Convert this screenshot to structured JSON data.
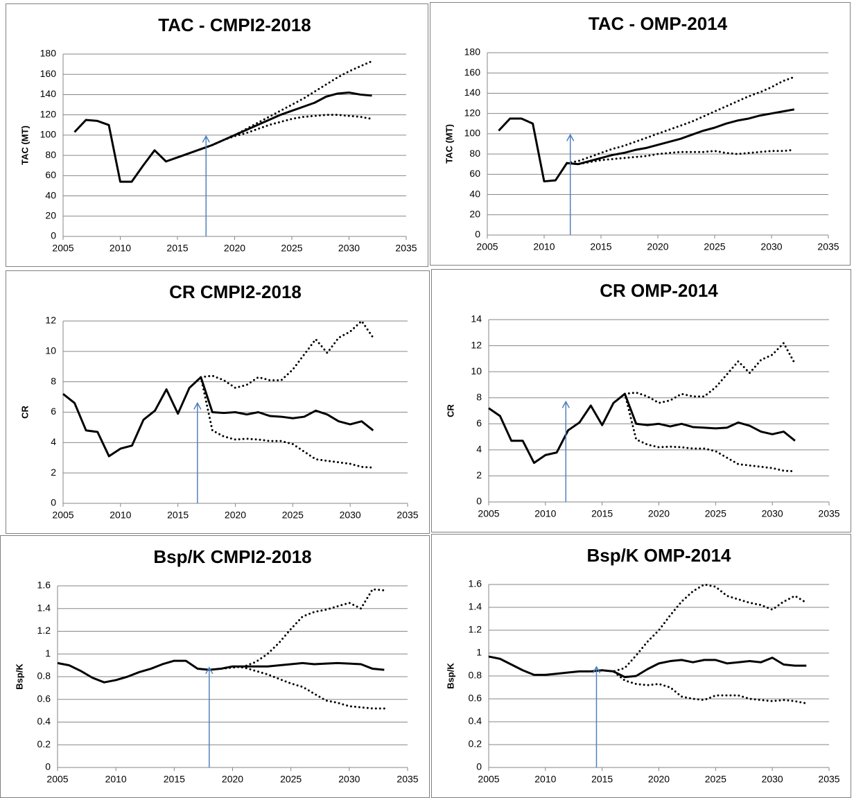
{
  "chart_data": [
    {
      "type": "line",
      "title": "TAC - CMPI2-2018",
      "ylabel": "TAC (MT)",
      "x": [
        2006,
        2007,
        2008,
        2009,
        2010,
        2011,
        2012,
        2013,
        2014,
        2015,
        2016,
        2017,
        2018,
        2019,
        2020,
        2021,
        2022,
        2023,
        2024,
        2025,
        2026,
        2027,
        2028,
        2029,
        2030,
        2031,
        2032
      ],
      "series": [
        {
          "color": "#000000",
          "dash": "solid",
          "values": [
            103,
            115,
            114,
            110,
            54,
            54,
            70,
            85,
            74,
            78,
            82,
            86,
            90,
            95,
            100,
            105,
            110,
            115,
            120,
            124,
            128,
            132,
            138,
            141,
            142,
            140,
            139
          ]
        },
        {
          "color": "#000000",
          "dash": "dotted",
          "values": [
            null,
            null,
            null,
            null,
            null,
            null,
            null,
            null,
            null,
            null,
            null,
            86,
            90,
            95,
            100,
            106,
            112,
            118,
            124,
            130,
            136,
            143,
            150,
            157,
            163,
            168,
            173
          ]
        },
        {
          "color": "#000000",
          "dash": "dotted",
          "values": [
            null,
            null,
            null,
            null,
            null,
            null,
            null,
            null,
            null,
            null,
            null,
            86,
            90,
            95,
            99,
            102,
            106,
            110,
            113,
            116,
            118,
            119,
            120,
            120,
            119,
            118,
            116
          ]
        }
      ],
      "arrow_x": 2017.5,
      "arrow_color": "#4f81bd",
      "xlim": [
        2005,
        2035
      ],
      "xticks": [
        2005,
        2010,
        2015,
        2020,
        2025,
        2030,
        2035
      ],
      "ylim": [
        0,
        180
      ],
      "yticks": [
        0,
        20,
        40,
        60,
        80,
        100,
        120,
        140,
        160,
        180
      ],
      "grid": true
    },
    {
      "type": "line",
      "title": "TAC - OMP-2014",
      "ylabel": "TAC (MT)",
      "x": [
        2006,
        2007,
        2008,
        2009,
        2010,
        2011,
        2012,
        2013,
        2014,
        2015,
        2016,
        2017,
        2018,
        2019,
        2020,
        2021,
        2022,
        2023,
        2024,
        2025,
        2026,
        2027,
        2028,
        2029,
        2030,
        2031,
        2032
      ],
      "series": [
        {
          "color": "#000000",
          "dash": "solid",
          "values": [
            103,
            115,
            115,
            110,
            53,
            54,
            71,
            70,
            73,
            76,
            79,
            81,
            84,
            86,
            89,
            92,
            95,
            99,
            103,
            106,
            110,
            113,
            115,
            118,
            120,
            122,
            124
          ]
        },
        {
          "color": "#000000",
          "dash": "dotted",
          "values": [
            null,
            null,
            null,
            null,
            null,
            null,
            71,
            73,
            77,
            81,
            85,
            88,
            92,
            96,
            100,
            104,
            108,
            112,
            117,
            122,
            127,
            132,
            137,
            141,
            146,
            152,
            156
          ]
        },
        {
          "color": "#000000",
          "dash": "dotted",
          "values": [
            null,
            null,
            null,
            null,
            null,
            null,
            71,
            70,
            72,
            74,
            75,
            76,
            77,
            78,
            80,
            81,
            82,
            82,
            82,
            83,
            81,
            80,
            81,
            82,
            83,
            83,
            84
          ]
        }
      ],
      "arrow_x": 2012.3,
      "arrow_color": "#4f81bd",
      "xlim": [
        2005,
        2035
      ],
      "xticks": [
        2005,
        2010,
        2015,
        2020,
        2025,
        2030,
        2035
      ],
      "ylim": [
        0,
        180
      ],
      "yticks": [
        0,
        20,
        40,
        60,
        80,
        100,
        120,
        140,
        160,
        180
      ],
      "grid": true
    },
    {
      "type": "line",
      "title": "CR CMPI2-2018",
      "ylabel": "CR",
      "x": [
        2005,
        2006,
        2007,
        2008,
        2009,
        2010,
        2011,
        2012,
        2013,
        2014,
        2015,
        2016,
        2017,
        2018,
        2019,
        2020,
        2021,
        2022,
        2023,
        2024,
        2025,
        2026,
        2027,
        2028,
        2029,
        2030,
        2031,
        2032
      ],
      "series": [
        {
          "color": "#000000",
          "dash": "solid",
          "values": [
            7.2,
            6.6,
            4.8,
            4.7,
            3.1,
            3.6,
            3.8,
            5.5,
            6.1,
            7.5,
            5.9,
            7.6,
            8.3,
            6.0,
            5.95,
            6.0,
            5.85,
            6.0,
            5.75,
            5.7,
            5.6,
            5.7,
            6.1,
            5.85,
            5.4,
            5.2,
            5.4,
            4.8
          ]
        },
        {
          "color": "#000000",
          "dash": "dotted",
          "values": [
            null,
            null,
            null,
            null,
            null,
            null,
            null,
            null,
            null,
            null,
            null,
            null,
            8.3,
            8.4,
            8.1,
            7.6,
            7.8,
            8.3,
            8.1,
            8.1,
            8.8,
            9.8,
            10.8,
            9.9,
            10.9,
            11.3,
            12.0,
            10.9
          ]
        },
        {
          "color": "#000000",
          "dash": "dotted",
          "values": [
            null,
            null,
            null,
            null,
            null,
            null,
            null,
            null,
            null,
            null,
            null,
            null,
            8.3,
            4.8,
            4.4,
            4.2,
            4.25,
            4.2,
            4.1,
            4.1,
            3.9,
            3.4,
            2.9,
            2.8,
            2.7,
            2.6,
            2.4,
            2.35
          ]
        }
      ],
      "arrow_x": 2016.7,
      "arrow_color": "#4f81bd",
      "xlim": [
        2005,
        2035
      ],
      "xticks": [
        2005,
        2010,
        2015,
        2020,
        2025,
        2030,
        2035
      ],
      "ylim": [
        0,
        12
      ],
      "yticks": [
        0,
        2,
        4,
        6,
        8,
        10,
        12
      ],
      "grid": true
    },
    {
      "type": "line",
      "title": "CR OMP-2014",
      "ylabel": "CR",
      "x": [
        2005,
        2006,
        2007,
        2008,
        2009,
        2010,
        2011,
        2012,
        2013,
        2014,
        2015,
        2016,
        2017,
        2018,
        2019,
        2020,
        2021,
        2022,
        2023,
        2024,
        2025,
        2026,
        2027,
        2028,
        2029,
        2030,
        2031,
        2032
      ],
      "series": [
        {
          "color": "#000000",
          "dash": "solid",
          "values": [
            7.2,
            6.6,
            4.7,
            4.7,
            3.0,
            3.6,
            3.8,
            5.5,
            6.1,
            7.4,
            5.9,
            7.6,
            8.3,
            6.0,
            5.9,
            6.0,
            5.8,
            6.0,
            5.75,
            5.7,
            5.65,
            5.7,
            6.1,
            5.85,
            5.4,
            5.2,
            5.4,
            4.7
          ]
        },
        {
          "color": "#000000",
          "dash": "dotted",
          "values": [
            null,
            null,
            null,
            null,
            null,
            null,
            null,
            null,
            null,
            null,
            null,
            null,
            8.3,
            8.4,
            8.1,
            7.6,
            7.8,
            8.3,
            8.1,
            8.1,
            8.8,
            9.8,
            10.8,
            9.9,
            10.9,
            11.3,
            12.2,
            10.6
          ]
        },
        {
          "color": "#000000",
          "dash": "dotted",
          "values": [
            null,
            null,
            null,
            null,
            null,
            null,
            null,
            null,
            null,
            null,
            null,
            null,
            8.3,
            4.8,
            4.4,
            4.2,
            4.25,
            4.2,
            4.1,
            4.1,
            3.9,
            3.4,
            2.9,
            2.8,
            2.7,
            2.6,
            2.4,
            2.35
          ]
        }
      ],
      "arrow_x": 2011.8,
      "arrow_color": "#4f81bd",
      "xlim": [
        2005,
        2035
      ],
      "xticks": [
        2005,
        2010,
        2015,
        2020,
        2025,
        2030,
        2035
      ],
      "ylim": [
        0,
        14
      ],
      "yticks": [
        0,
        2,
        4,
        6,
        8,
        10,
        12,
        14
      ],
      "grid": true
    },
    {
      "type": "line",
      "title": "Bsp/K CMPI2-2018",
      "ylabel": "Bsp/K",
      "x": [
        2005,
        2006,
        2007,
        2008,
        2009,
        2010,
        2011,
        2012,
        2013,
        2014,
        2015,
        2016,
        2017,
        2018,
        2019,
        2020,
        2021,
        2022,
        2023,
        2024,
        2025,
        2026,
        2027,
        2028,
        2029,
        2030,
        2031,
        2032,
        2033
      ],
      "series": [
        {
          "color": "#000000",
          "dash": "solid",
          "values": [
            0.92,
            0.9,
            0.85,
            0.79,
            0.75,
            0.77,
            0.8,
            0.84,
            0.87,
            0.91,
            0.94,
            0.94,
            0.87,
            0.86,
            0.87,
            0.89,
            0.89,
            0.89,
            0.89,
            0.9,
            0.91,
            0.92,
            0.91,
            0.915,
            0.92,
            0.915,
            0.91,
            0.87,
            0.86
          ]
        },
        {
          "color": "#000000",
          "dash": "dotted",
          "values": [
            null,
            null,
            null,
            null,
            null,
            null,
            null,
            null,
            null,
            null,
            null,
            null,
            null,
            0.86,
            0.87,
            0.88,
            0.89,
            0.93,
            1.0,
            1.1,
            1.22,
            1.33,
            1.37,
            1.39,
            1.42,
            1.45,
            1.4,
            1.57,
            1.56
          ]
        },
        {
          "color": "#000000",
          "dash": "dotted",
          "values": [
            null,
            null,
            null,
            null,
            null,
            null,
            null,
            null,
            null,
            null,
            null,
            null,
            null,
            0.86,
            0.87,
            0.89,
            0.88,
            0.85,
            0.82,
            0.78,
            0.74,
            0.71,
            0.65,
            0.59,
            0.57,
            0.54,
            0.53,
            0.52,
            0.52
          ]
        }
      ],
      "arrow_x": 2018,
      "arrow_color": "#4f81bd",
      "xlim": [
        2005,
        2035
      ],
      "xticks": [
        2005,
        2010,
        2015,
        2020,
        2025,
        2030,
        2035
      ],
      "ylim": [
        0,
        1.6
      ],
      "yticks": [
        0,
        0.2,
        0.4,
        0.6,
        0.8,
        1,
        1.2,
        1.4,
        1.6
      ],
      "grid": true
    },
    {
      "type": "line",
      "title": "Bsp/K OMP-2014",
      "ylabel": "Bsp/K",
      "x": [
        2005,
        2006,
        2007,
        2008,
        2009,
        2010,
        2011,
        2012,
        2013,
        2014,
        2015,
        2016,
        2017,
        2018,
        2019,
        2020,
        2021,
        2022,
        2023,
        2024,
        2025,
        2026,
        2027,
        2028,
        2029,
        2030,
        2031,
        2032,
        2033
      ],
      "series": [
        {
          "color": "#000000",
          "dash": "solid",
          "values": [
            0.97,
            0.95,
            0.9,
            0.85,
            0.81,
            0.81,
            0.82,
            0.83,
            0.84,
            0.84,
            0.85,
            0.84,
            0.79,
            0.8,
            0.86,
            0.91,
            0.93,
            0.94,
            0.92,
            0.94,
            0.94,
            0.91,
            0.92,
            0.93,
            0.92,
            0.96,
            0.9,
            0.89,
            0.89
          ]
        },
        {
          "color": "#000000",
          "dash": "dotted",
          "values": [
            null,
            null,
            null,
            null,
            null,
            null,
            null,
            null,
            null,
            null,
            0.85,
            0.84,
            0.87,
            0.98,
            1.1,
            1.2,
            1.33,
            1.45,
            1.54,
            1.6,
            1.58,
            1.5,
            1.47,
            1.44,
            1.42,
            1.38,
            1.45,
            1.5,
            1.44
          ]
        },
        {
          "color": "#000000",
          "dash": "dotted",
          "values": [
            null,
            null,
            null,
            null,
            null,
            null,
            null,
            null,
            null,
            null,
            0.85,
            0.84,
            0.76,
            0.73,
            0.72,
            0.73,
            0.7,
            0.62,
            0.6,
            0.59,
            0.63,
            0.63,
            0.63,
            0.6,
            0.59,
            0.58,
            0.59,
            0.58,
            0.56
          ]
        }
      ],
      "arrow_x": 2014.5,
      "arrow_color": "#4f81bd",
      "xlim": [
        2005,
        2035
      ],
      "xticks": [
        2005,
        2010,
        2015,
        2020,
        2025,
        2030,
        2035
      ],
      "ylim": [
        0,
        1.6
      ],
      "yticks": [
        0,
        0.2,
        0.4,
        0.6,
        0.8,
        1,
        1.2,
        1.4,
        1.6
      ],
      "grid": true
    }
  ]
}
